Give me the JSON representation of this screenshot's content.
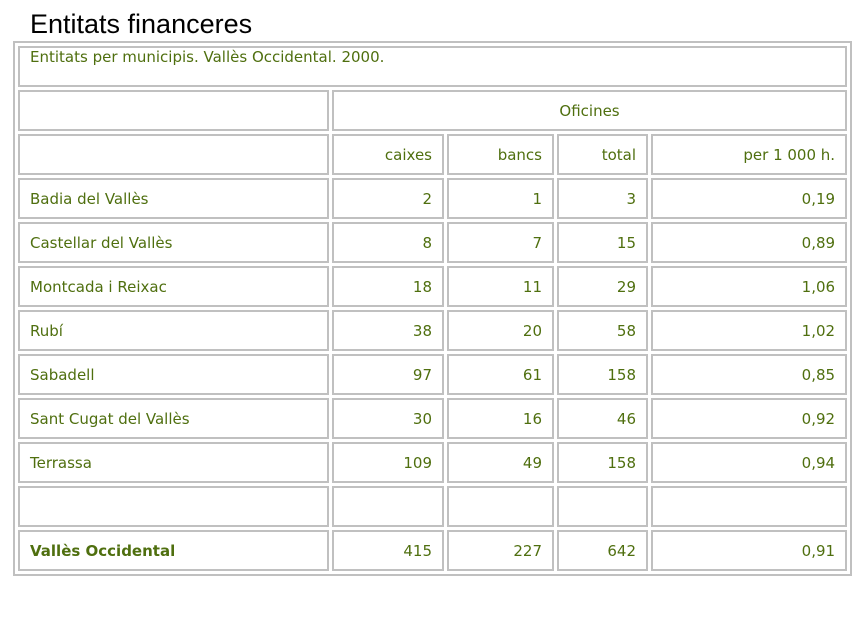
{
  "title": "Entitats financeres",
  "caption": "Entitats per municipis. Vallès Occidental. 2000.",
  "group_header": "Oficines",
  "columns": [
    "caixes",
    "bancs",
    "total",
    "per 1 000 h."
  ],
  "rows": [
    {
      "municipi": "Badia del Vallès",
      "caixes": "2",
      "bancs": "1",
      "total": "3",
      "per1000": "0,19"
    },
    {
      "municipi": "Castellar del Vallès",
      "caixes": "8",
      "bancs": "7",
      "total": "15",
      "per1000": "0,89"
    },
    {
      "municipi": "Montcada i Reixac",
      "caixes": "18",
      "bancs": "11",
      "total": "29",
      "per1000": "1,06"
    },
    {
      "municipi": "Rubí",
      "caixes": "38",
      "bancs": "20",
      "total": "58",
      "per1000": "1,02"
    },
    {
      "municipi": "Sabadell",
      "caixes": "97",
      "bancs": "61",
      "total": "158",
      "per1000": "0,85"
    },
    {
      "municipi": "Sant Cugat del Vallès",
      "caixes": "30",
      "bancs": "16",
      "total": "46",
      "per1000": "0,92"
    },
    {
      "municipi": "Terrassa",
      "caixes": "109",
      "bancs": "49",
      "total": "158",
      "per1000": "0,94"
    }
  ],
  "total_row": {
    "municipi": "Vallès Occidental",
    "caixes": "415",
    "bancs": "227",
    "total": "642",
    "per1000": "0,91"
  }
}
